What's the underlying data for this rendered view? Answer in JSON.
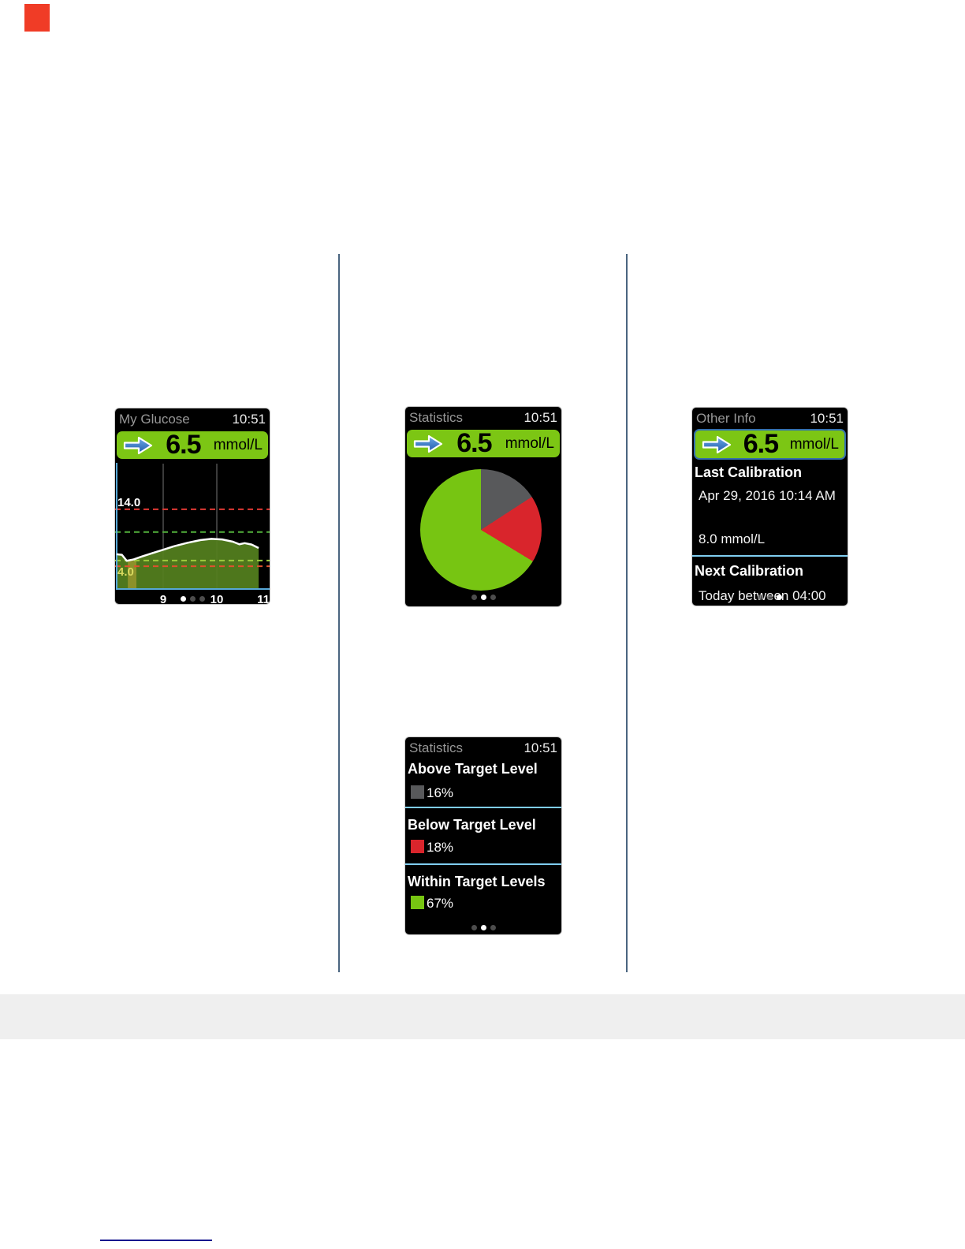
{
  "page": {
    "marker_color": "#f03c26",
    "column_divider_color": "#4a6580",
    "footer_band_color": "#efefef",
    "footer_rule_color": "#11118e"
  },
  "chart_data": [
    {
      "type": "area",
      "title": "My Glucose trend graph",
      "x": [
        8.13,
        8.23,
        8.32,
        8.45,
        8.6,
        8.8,
        9.0,
        9.2,
        9.45,
        9.7,
        9.9,
        10.1,
        10.3,
        10.42,
        10.52,
        10.65,
        10.78
      ],
      "y": [
        6.1,
        6.0,
        4.95,
        5.2,
        5.7,
        6.3,
        6.9,
        7.5,
        8.1,
        8.6,
        8.8,
        8.7,
        8.3,
        7.85,
        8.05,
        7.8,
        7.2
      ],
      "ylabel": "mmol/L",
      "ylim": [
        0,
        22
      ],
      "xticks": [
        "9",
        "10",
        "11"
      ],
      "xtick_values": [
        9,
        10,
        11
      ],
      "high_alert": 14.0,
      "target_high": 10.0,
      "target_low": 5.0,
      "low_alert": 4.0,
      "high_label": "14.0",
      "low_label": "4.0",
      "line_color": "#ffffff",
      "fill_color": "#54801e",
      "band_color": "#93932c",
      "high_line_color": "#e03a34",
      "target_high_color": "#53b13c",
      "target_low_color": "#9ccb3d",
      "low_line_color": "#e0512e",
      "axis_color": "#56a8d8",
      "grid_color": "#4f4f4f",
      "grid": true,
      "legend": false
    },
    {
      "type": "pie",
      "title": "Statistics",
      "slices": [
        {
          "label": "Above Target Level",
          "value": 16,
          "color": "#58595b"
        },
        {
          "label": "Below Target Level",
          "value": 18,
          "color": "#d9252c"
        },
        {
          "label": "Within Target Levels",
          "value": 67,
          "color": "#77c512"
        }
      ],
      "start_angle_deg": 0,
      "direction": "clockwise",
      "legend_position": "none"
    }
  ],
  "screens": {
    "glucose": {
      "title": "My Glucose",
      "time": "10:51",
      "value": "6.5",
      "unit": "mmol/L",
      "trend_icon": "steady-arrow-icon",
      "dots_active": 0
    },
    "statistics_pie": {
      "title": "Statistics",
      "time": "10:51",
      "value": "6.5",
      "unit": "mmol/L",
      "dots_active": 1
    },
    "other_info": {
      "title": "Other Info",
      "time": "10:51",
      "value": "6.5",
      "unit": "mmol/L",
      "last_calibration_heading": "Last Calibration",
      "last_calibration_datetime": "Apr 29, 2016 10:14 AM",
      "last_calibration_value": "8.0 mmol/L",
      "next_calibration_heading": "Next Calibration",
      "next_calibration_text": "Today between 04:00",
      "dots_active": 2
    },
    "statistics_list": {
      "title": "Statistics",
      "time": "10:51",
      "rows": [
        {
          "label": "Above Target Level",
          "percent": "16%",
          "color": "#58595b"
        },
        {
          "label": "Below Target Level",
          "percent": "18%",
          "color": "#d9252c"
        },
        {
          "label": "Within Target Levels",
          "percent": "67%",
          "color": "#77c512"
        }
      ],
      "dots_active": 1
    }
  }
}
